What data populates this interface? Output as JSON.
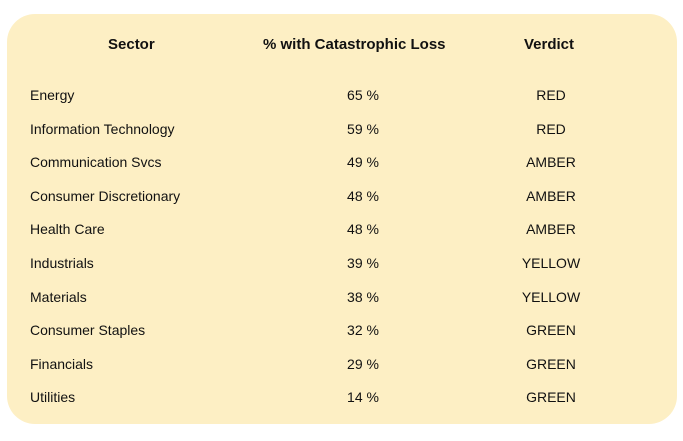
{
  "table": {
    "headers": {
      "sector": "Sector",
      "pct": "% with Catastrophic Loss",
      "verdict": "Verdict"
    },
    "rows": [
      {
        "sector": "Energy",
        "pct": "65 %",
        "verdict": "RED"
      },
      {
        "sector": "Information Technology",
        "pct": "59 %",
        "verdict": "RED"
      },
      {
        "sector": "Communication Svcs",
        "pct": "49 %",
        "verdict": "AMBER"
      },
      {
        "sector": "Consumer Discretionary",
        "pct": "48 %",
        "verdict": "AMBER"
      },
      {
        "sector": "Health Care",
        "pct": "48 %",
        "verdict": "AMBER"
      },
      {
        "sector": "Industrials",
        "pct": "39 %",
        "verdict": "YELLOW"
      },
      {
        "sector": "Materials",
        "pct": "38 %",
        "verdict": "YELLOW"
      },
      {
        "sector": "Consumer Staples",
        "pct": "32 %",
        "verdict": "GREEN"
      },
      {
        "sector": "Financials",
        "pct": "29 %",
        "verdict": "GREEN"
      },
      {
        "sector": "Utilities",
        "pct": "14 %",
        "verdict": "GREEN"
      }
    ]
  },
  "colors": {
    "card_background": "#fdefc4",
    "text": "#111111"
  }
}
